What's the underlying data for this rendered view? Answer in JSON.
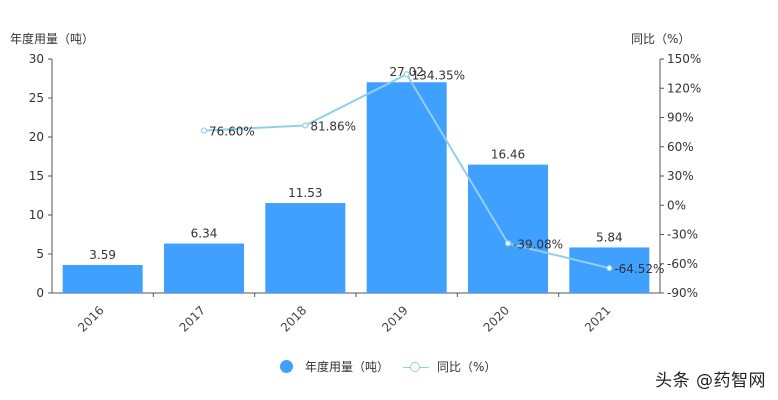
{
  "chart_data": {
    "type": "bar+line",
    "categories": [
      "2016",
      "2017",
      "2018",
      "2019",
      "2020",
      "2021"
    ],
    "series": [
      {
        "name": "年度用量（吨）",
        "type": "bar",
        "axis": "left",
        "color": "#3fa0ff",
        "values": [
          3.59,
          6.34,
          11.53,
          27.02,
          16.46,
          5.84
        ],
        "labels": [
          "3.59",
          "6.34",
          "11.53",
          "27.02",
          "16.46",
          "5.84"
        ]
      },
      {
        "name": "同比（%）",
        "type": "line",
        "axis": "right",
        "color": "#8fd0e8",
        "values": [
          null,
          76.6,
          81.86,
          134.35,
          -39.08,
          -64.52
        ],
        "labels": [
          "",
          "76.60%",
          "81.86%",
          "134.35%",
          "-39.08%",
          "-64.52%"
        ]
      }
    ],
    "title": "",
    "ylabel": "年度用量（吨）",
    "y2label": "同比（%）",
    "ylim": [
      0,
      30
    ],
    "y2lim": [
      -90,
      150
    ],
    "yticks": [
      "0",
      "5",
      "10",
      "15",
      "20",
      "25",
      "30"
    ],
    "y2ticks": [
      "-90%",
      "-60%",
      "-30%",
      "0%",
      "30%",
      "60%",
      "90%",
      "120%",
      "150%"
    ],
    "grid": false,
    "legend_position": "bottom"
  },
  "axes": {
    "left_title": "年度用量（吨）",
    "right_title": "同比（%）"
  },
  "legend": {
    "items": [
      {
        "label": "年度用量（吨）"
      },
      {
        "label": "同比（%）"
      }
    ]
  },
  "watermark": "头条 @药智网"
}
